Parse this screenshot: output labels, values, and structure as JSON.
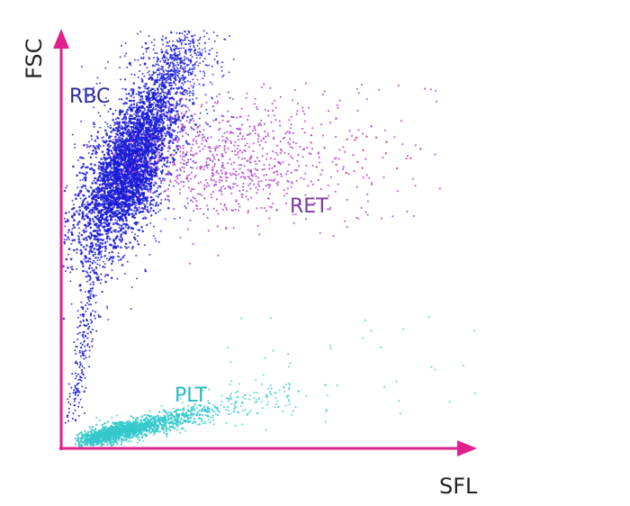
{
  "chart_data": {
    "type": "scatter",
    "title": "",
    "xlabel": "SFL",
    "ylabel": "FSC",
    "grid": false,
    "legend": "none",
    "axis_color": "#e0208c",
    "clusters": [
      {
        "label": "RBC",
        "color": "#1b1bd6",
        "label_color": "#2a2a9a"
      },
      {
        "label": "RET",
        "color": "#b24ad0",
        "label_color": "#7d3a9a"
      },
      {
        "label": "PLT",
        "color": "#35c8cc",
        "label_color": "#29b8c0"
      }
    ]
  }
}
